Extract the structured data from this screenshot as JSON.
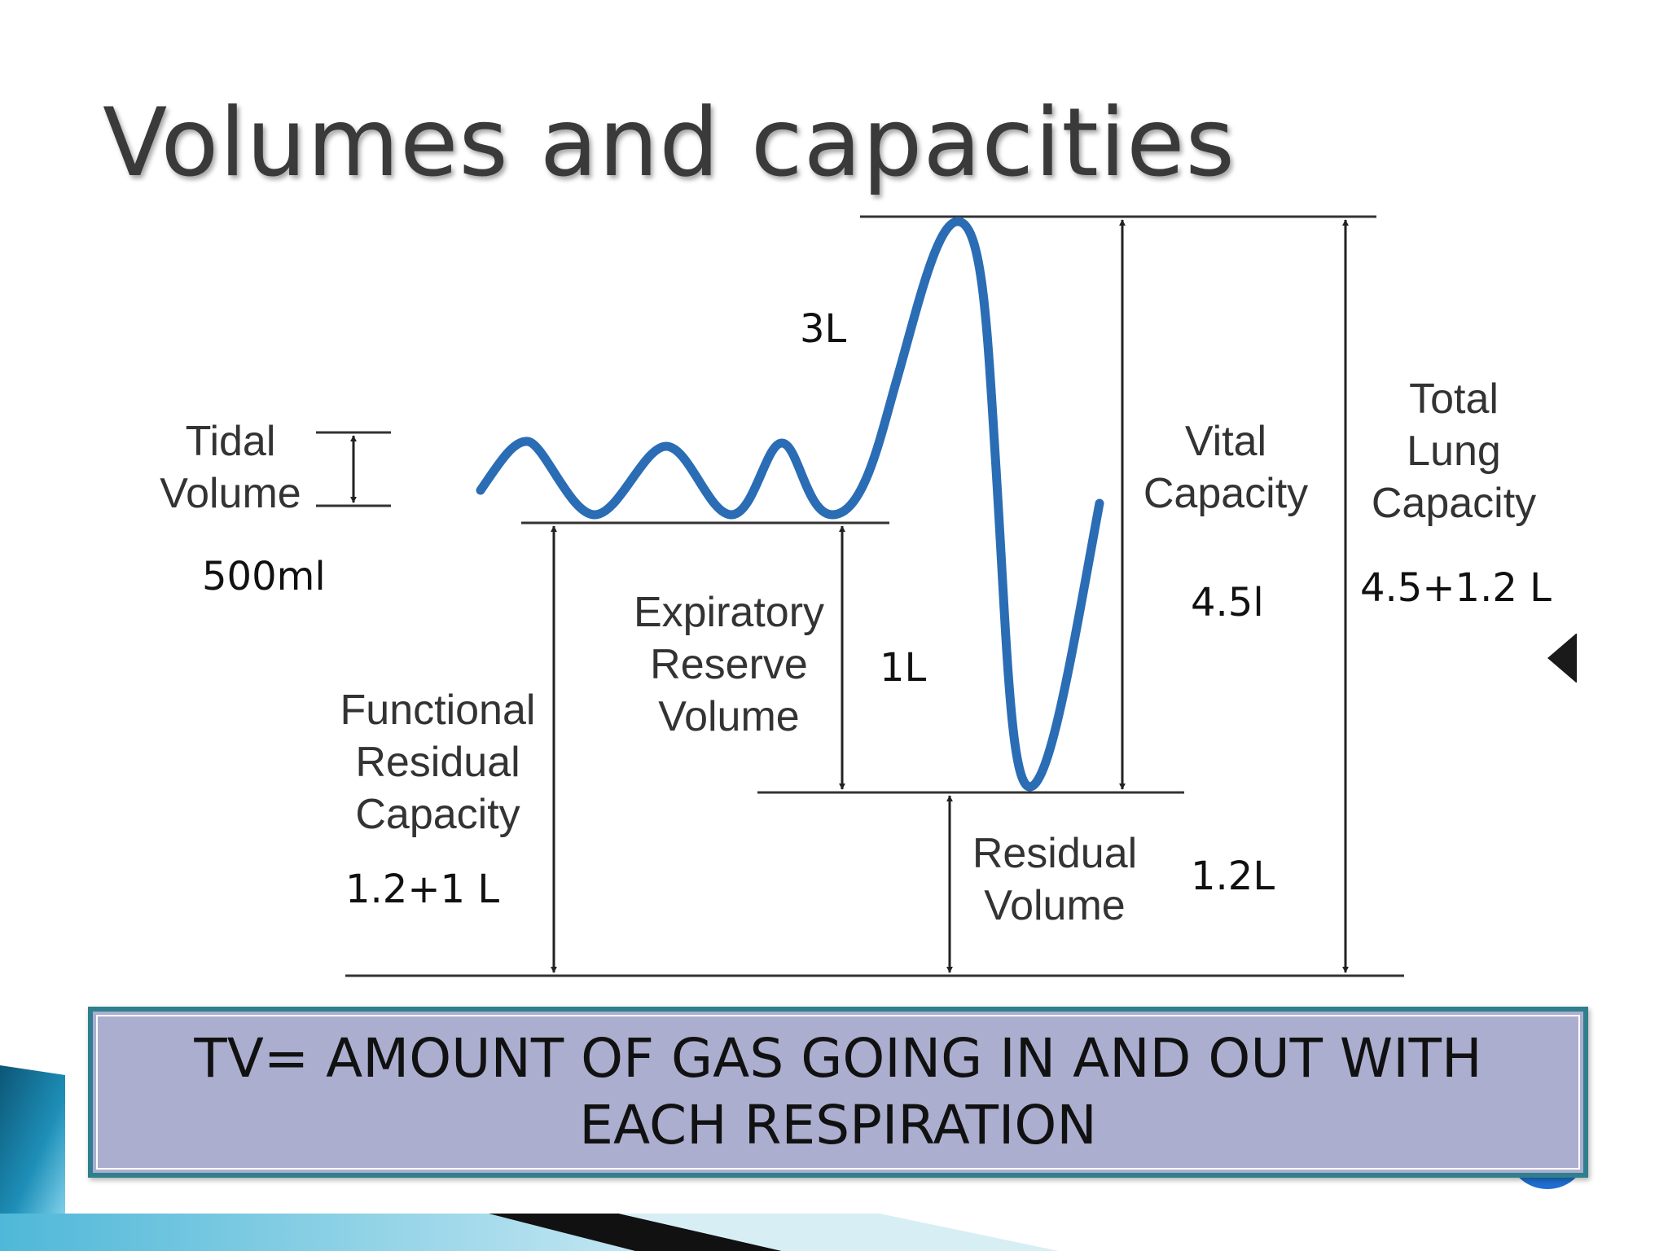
{
  "slide_title": "Volumes and capacities",
  "diagram_labels": {
    "tidal_volume": "Tidal\nVolume",
    "vital_capacity": "Vital\nCapacity",
    "total_lung_capacity": "Total\nLung\nCapacity",
    "expiratory_reserve_volume": "Expiratory\nReserve\nVolume",
    "functional_residual_capacity": "Functional\nResidual\nCapacity",
    "residual_volume": "Residual\nVolume"
  },
  "annotations": {
    "tidal_volume_value": "500ml",
    "inspiratory_value": "3L",
    "expiratory_reserve_value": "1L",
    "vital_capacity_value": "4.5l",
    "total_lung_capacity_value": "4.5+1.2 L",
    "functional_residual_value": "1.2+1 L",
    "residual_volume_value": "1.2L"
  },
  "definition_box": {
    "text": "TV= AMOUNT OF GAS GOING IN AND OUT WITH\nEACH RESPIRATION"
  },
  "colors": {
    "curve": "#2a6db5",
    "lines": "#333333",
    "box_fill": "#acaed0",
    "box_border": "#2f7f8e",
    "accent_dark": "#0f5f7a",
    "accent_light": "#5cc3e0"
  }
}
